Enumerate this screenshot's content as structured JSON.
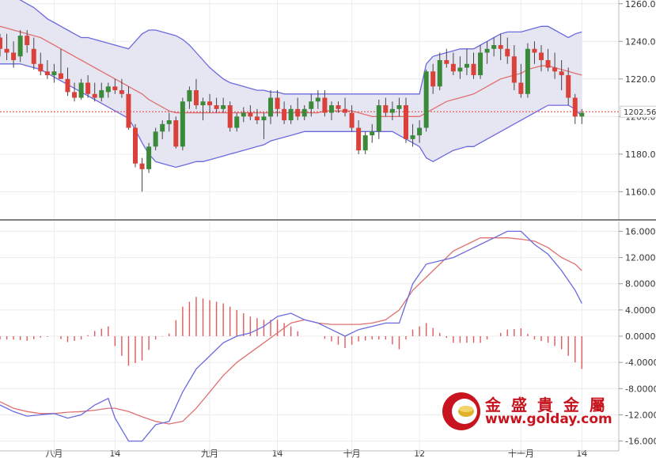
{
  "chart_data": [
    {
      "type": "candlestick",
      "panel": "price",
      "indicator": "bollinger",
      "ylim": [
        1145,
        1262
      ],
      "yticks": [
        1160.0,
        1180.0,
        1200.0,
        1220.0,
        1240.0,
        1260.0
      ],
      "ytick_labels": [
        "1160.00",
        "1180.00",
        "1200.00",
        "1220.00",
        "1240.00",
        "1260.00"
      ],
      "last_price": 1202.56,
      "last_price_label": "1202.56",
      "colors": {
        "up": "#3a8a3a",
        "down": "#d9413a",
        "band": "#6a6ae0",
        "band_fill": "#e6e6f3",
        "mid": "#e07070",
        "last_line": "#e04040"
      },
      "ohlc": [
        [
          1242,
          1244,
          1232,
          1236
        ],
        [
          1236,
          1244,
          1230,
          1234
        ],
        [
          1234,
          1240,
          1226,
          1230
        ],
        [
          1232,
          1246,
          1229,
          1243
        ],
        [
          1243,
          1246,
          1234,
          1238
        ],
        [
          1236,
          1242,
          1225,
          1228
        ],
        [
          1228,
          1234,
          1222,
          1224
        ],
        [
          1224,
          1230,
          1220,
          1222
        ],
        [
          1222,
          1228,
          1218,
          1224
        ],
        [
          1223,
          1236,
          1220,
          1220
        ],
        [
          1220,
          1226,
          1211,
          1213
        ],
        [
          1213,
          1218,
          1208,
          1210
        ],
        [
          1210,
          1220,
          1209,
          1218
        ],
        [
          1218,
          1222,
          1210,
          1212
        ],
        [
          1212,
          1218,
          1208,
          1210
        ],
        [
          1210,
          1218,
          1208,
          1214
        ],
        [
          1213,
          1218,
          1210,
          1216
        ],
        [
          1216,
          1220,
          1212,
          1214
        ],
        [
          1214,
          1220,
          1210,
          1212
        ],
        [
          1212,
          1216,
          1193,
          1194
        ],
        [
          1194,
          1196,
          1173,
          1175
        ],
        [
          1175,
          1178,
          1160,
          1172
        ],
        [
          1172,
          1186,
          1170,
          1184
        ],
        [
          1184,
          1194,
          1182,
          1192
        ],
        [
          1192,
          1198,
          1188,
          1196
        ],
        [
          1196,
          1202,
          1192,
          1198
        ],
        [
          1198,
          1200,
          1183,
          1184
        ],
        [
          1184,
          1210,
          1182,
          1208
        ],
        [
          1208,
          1216,
          1204,
          1214
        ],
        [
          1214,
          1220,
          1204,
          1206
        ],
        [
          1206,
          1210,
          1198,
          1208
        ],
        [
          1208,
          1212,
          1202,
          1206
        ],
        [
          1206,
          1210,
          1202,
          1204
        ],
        [
          1204,
          1210,
          1202,
          1206
        ],
        [
          1206,
          1208,
          1192,
          1194
        ],
        [
          1194,
          1202,
          1192,
          1200
        ],
        [
          1200,
          1205,
          1197,
          1202
        ],
        [
          1202,
          1206,
          1198,
          1200
        ],
        [
          1200,
          1204,
          1196,
          1198
        ],
        [
          1198,
          1202,
          1188,
          1200
        ],
        [
          1200,
          1214,
          1196,
          1210
        ],
        [
          1210,
          1214,
          1200,
          1204
        ],
        [
          1204,
          1208,
          1196,
          1198
        ],
        [
          1198,
          1206,
          1196,
          1204
        ],
        [
          1204,
          1210,
          1198,
          1200
        ],
        [
          1200,
          1206,
          1198,
          1204
        ],
        [
          1204,
          1212,
          1200,
          1208
        ],
        [
          1208,
          1214,
          1204,
          1210
        ],
        [
          1210,
          1214,
          1200,
          1202
        ],
        [
          1202,
          1208,
          1198,
          1206
        ],
        [
          1206,
          1208,
          1202,
          1204
        ],
        [
          1204,
          1210,
          1200,
          1202
        ],
        [
          1202,
          1206,
          1192,
          1194
        ],
        [
          1194,
          1198,
          1180,
          1182
        ],
        [
          1182,
          1192,
          1180,
          1190
        ],
        [
          1190,
          1196,
          1186,
          1192
        ],
        [
          1192,
          1209,
          1188,
          1206
        ],
        [
          1206,
          1210,
          1200,
          1202
        ],
        [
          1202,
          1208,
          1198,
          1204
        ],
        [
          1204,
          1210,
          1200,
          1206
        ],
        [
          1206,
          1210,
          1186,
          1188
        ],
        [
          1188,
          1196,
          1184,
          1190
        ],
        [
          1190,
          1198,
          1186,
          1194
        ],
        [
          1194,
          1225,
          1192,
          1224
        ],
        [
          1224,
          1228,
          1212,
          1216
        ],
        [
          1216,
          1234,
          1214,
          1230
        ],
        [
          1230,
          1236,
          1226,
          1228
        ],
        [
          1228,
          1234,
          1222,
          1224
        ],
        [
          1224,
          1232,
          1220,
          1226
        ],
        [
          1226,
          1236,
          1222,
          1228
        ],
        [
          1228,
          1234,
          1220,
          1222
        ],
        [
          1222,
          1238,
          1220,
          1234
        ],
        [
          1234,
          1240,
          1228,
          1236
        ],
        [
          1236,
          1242,
          1232,
          1238
        ],
        [
          1238,
          1244,
          1230,
          1236
        ],
        [
          1236,
          1242,
          1228,
          1232
        ],
        [
          1232,
          1238,
          1214,
          1218
        ],
        [
          1218,
          1228,
          1210,
          1212
        ],
        [
          1212,
          1239,
          1210,
          1236
        ],
        [
          1236,
          1240,
          1228,
          1234
        ],
        [
          1234,
          1238,
          1224,
          1230
        ],
        [
          1230,
          1236,
          1224,
          1226
        ],
        [
          1226,
          1234,
          1220,
          1224
        ],
        [
          1224,
          1230,
          1214,
          1222
        ],
        [
          1222,
          1226,
          1206,
          1210
        ],
        [
          1210,
          1212,
          1196,
          1200
        ],
        [
          1200,
          1204,
          1196,
          1202
        ]
      ],
      "bollinger_upper": [
        1268,
        1266,
        1264,
        1262,
        1260,
        1258,
        1255,
        1252,
        1250,
        1248,
        1246,
        1244,
        1242,
        1242,
        1241,
        1240,
        1239,
        1238,
        1237,
        1236,
        1240,
        1244,
        1246,
        1246,
        1245,
        1244,
        1243,
        1241,
        1238,
        1234,
        1230,
        1226,
        1223,
        1220,
        1218,
        1217,
        1216,
        1215,
        1214,
        1214,
        1213,
        1213,
        1212,
        1212,
        1212,
        1212,
        1212,
        1212,
        1212,
        1212,
        1212,
        1212,
        1212,
        1212,
        1212,
        1212,
        1212,
        1212,
        1212,
        1212,
        1212,
        1212,
        1212,
        1228,
        1232,
        1233,
        1234,
        1235,
        1236,
        1236,
        1236,
        1238,
        1240,
        1242,
        1244,
        1245,
        1245,
        1245,
        1246,
        1247,
        1248,
        1248,
        1246,
        1244,
        1242,
        1244,
        1245
      ],
      "bollinger_middle": [
        1248,
        1247,
        1246,
        1245,
        1244,
        1243,
        1242,
        1240,
        1238,
        1236,
        1234,
        1232,
        1230,
        1228,
        1226,
        1224,
        1222,
        1220,
        1218,
        1216,
        1214,
        1212,
        1209,
        1207,
        1205,
        1203,
        1202,
        1202,
        1202,
        1202,
        1202,
        1202,
        1202,
        1202,
        1202,
        1202,
        1202,
        1202,
        1202,
        1202,
        1202,
        1202,
        1202,
        1202,
        1202,
        1202,
        1202,
        1202,
        1203,
        1203,
        1203,
        1203,
        1203,
        1202,
        1201,
        1200,
        1200,
        1200,
        1200,
        1200,
        1200,
        1200,
        1200,
        1202,
        1204,
        1206,
        1208,
        1209,
        1210,
        1211,
        1212,
        1214,
        1216,
        1218,
        1220,
        1221,
        1222,
        1223,
        1225,
        1226,
        1227,
        1227,
        1226,
        1225,
        1224,
        1223,
        1222
      ],
      "bollinger_lower": [
        1228,
        1228,
        1228,
        1228,
        1227,
        1226,
        1225,
        1223,
        1221,
        1219,
        1217,
        1215,
        1213,
        1211,
        1209,
        1207,
        1205,
        1203,
        1201,
        1199,
        1193,
        1186,
        1180,
        1176,
        1175,
        1174,
        1173,
        1174,
        1175,
        1176,
        1176,
        1177,
        1178,
        1179,
        1180,
        1181,
        1182,
        1183,
        1184,
        1185,
        1187,
        1188,
        1189,
        1190,
        1191,
        1192,
        1192,
        1192,
        1192,
        1192,
        1192,
        1192,
        1192,
        1192,
        1192,
        1192,
        1192,
        1192,
        1192,
        1190,
        1188,
        1186,
        1184,
        1178,
        1176,
        1178,
        1180,
        1182,
        1183,
        1184,
        1184,
        1186,
        1188,
        1190,
        1192,
        1194,
        1196,
        1198,
        1200,
        1202,
        1204,
        1206,
        1206,
        1206,
        1206,
        1204,
        1200
      ]
    },
    {
      "type": "line",
      "panel": "macd",
      "indicator": "macd",
      "ylim": [
        -17.5,
        17.5
      ],
      "yticks": [
        16,
        12,
        8,
        4,
        0,
        -4,
        -8,
        -12,
        -16
      ],
      "ytick_labels": [
        "16.0000",
        "12.0000",
        "8.0000",
        "4.0000",
        "0.0000",
        "-4.0000",
        "-8.0000",
        "-12.0000",
        "-16.0000"
      ],
      "colors": {
        "dif": "#6a6ae0",
        "dea": "#e07070",
        "histogram": "#e05a5a"
      },
      "x": [
        0,
        2,
        4,
        6,
        8,
        10,
        12,
        14,
        16,
        17,
        19,
        21,
        23,
        25,
        27,
        29,
        31,
        33,
        35,
        37,
        39,
        41,
        43,
        45,
        47,
        49,
        51,
        53,
        55,
        57,
        59,
        61,
        63,
        65,
        67,
        69,
        71,
        73,
        75,
        77,
        79,
        81,
        83,
        85,
        86
      ],
      "dif": [
        -10.5,
        -11.5,
        -12.2,
        -12,
        -11.8,
        -12.5,
        -12,
        -10.5,
        -9.5,
        -12.5,
        -16,
        -16,
        -13.5,
        -13,
        -8.5,
        -5,
        -3,
        -1,
        0,
        0.5,
        1.5,
        3,
        3.5,
        2.5,
        2,
        1,
        0,
        1,
        1.5,
        2,
        2,
        8,
        11,
        11.5,
        12,
        13,
        14,
        15,
        16,
        16,
        14,
        12.5,
        10,
        7,
        5
      ],
      "dea": [
        -10,
        -11,
        -11.5,
        -11.8,
        -11.8,
        -11.6,
        -11.5,
        -11.3,
        -11,
        -11,
        -11.5,
        -12.3,
        -13,
        -13.4,
        -13,
        -11,
        -8.5,
        -6,
        -4,
        -2.5,
        -1,
        0.5,
        2,
        2.5,
        2,
        1.8,
        1.8,
        1.8,
        2,
        2.5,
        4,
        7,
        9,
        11,
        13,
        14,
        15,
        15,
        15,
        14.8,
        14.5,
        13.5,
        12,
        11,
        10
      ]
    }
  ],
  "x_axis": {
    "ticks": [
      {
        "i": 8,
        "label": "八月"
      },
      {
        "i": 17,
        "label": "14"
      },
      {
        "i": 31,
        "label": "九月"
      },
      {
        "i": 41,
        "label": "14"
      },
      {
        "i": 52,
        "label": "十月"
      },
      {
        "i": 62,
        "label": "12"
      },
      {
        "i": 77,
        "label": "十一月"
      },
      {
        "i": 86,
        "label": "14"
      }
    ]
  },
  "watermark": {
    "text_cn": "金 盛 貴 金 屬",
    "url": "www.golday.com"
  }
}
